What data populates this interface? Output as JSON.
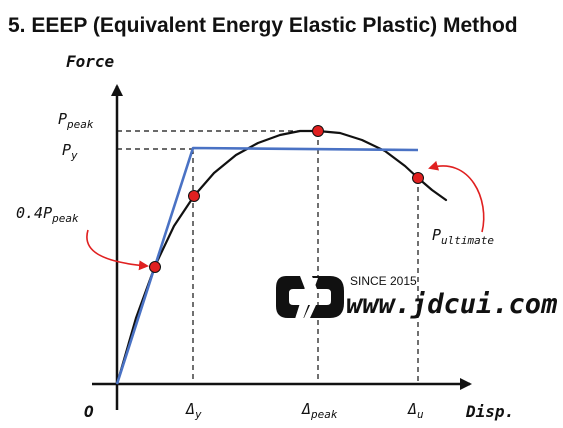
{
  "title": "5. EEEP (Equivalent Energy Elastic Plastic) Method",
  "axes": {
    "y_label": "Force",
    "x_label": "Disp.",
    "origin_label": "O"
  },
  "force_labels": {
    "p_peak": {
      "main": "P",
      "sub": "peak"
    },
    "p_y": {
      "main": "P",
      "sub": "y"
    },
    "p_04_peak": {
      "main": "0.4P",
      "sub": "peak"
    },
    "p_ultimate": {
      "main": "P",
      "sub": "ultimate"
    }
  },
  "disp_labels": {
    "delta_y": {
      "main": "Δ",
      "sub": "y"
    },
    "delta_peak": {
      "main": "Δ",
      "sub": "peak"
    },
    "delta_u": {
      "main": "Δ",
      "sub": "u"
    }
  },
  "watermark": {
    "since": "SINCE 2015",
    "url": "www.jdcui.com"
  },
  "colors": {
    "curve": "#111111",
    "bilinear": "#4a72c4",
    "points": "#e02020",
    "arrows": "#e02020"
  }
}
